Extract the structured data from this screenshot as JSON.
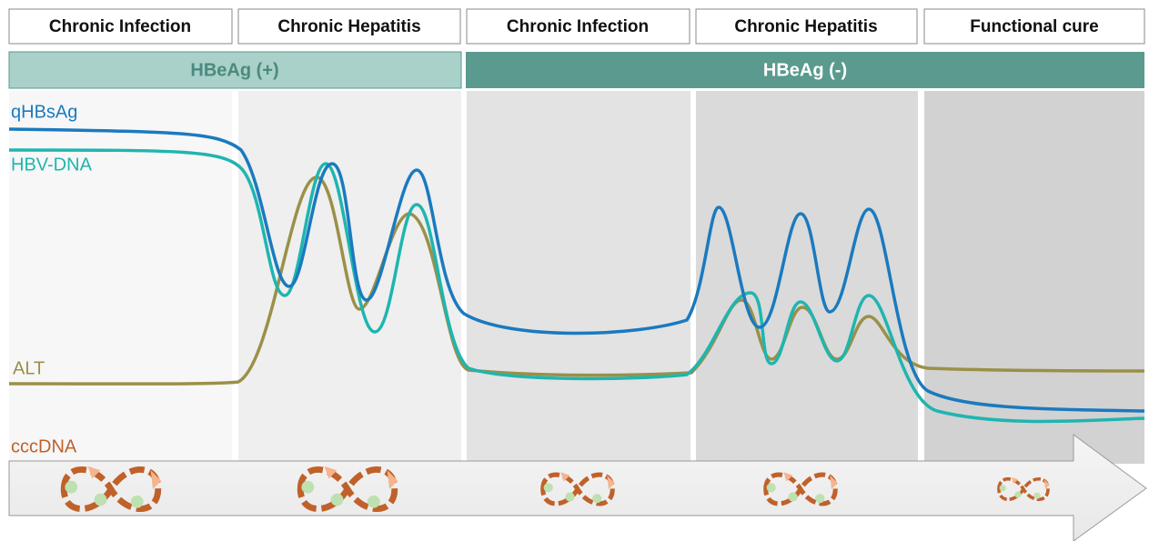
{
  "phases": [
    "Chronic Infection",
    "Chronic Hepatitis",
    "Chronic Infection",
    "Chronic Hepatitis",
    "Functional cure"
  ],
  "hbeag": [
    "HBeAg (+)",
    "HBeAg (-)"
  ],
  "curves": {
    "qhbsag": "qHBsAg",
    "hbv_dna": "HBV-DNA",
    "alt": "ALT",
    "cccdna": "cccDNA"
  }
}
